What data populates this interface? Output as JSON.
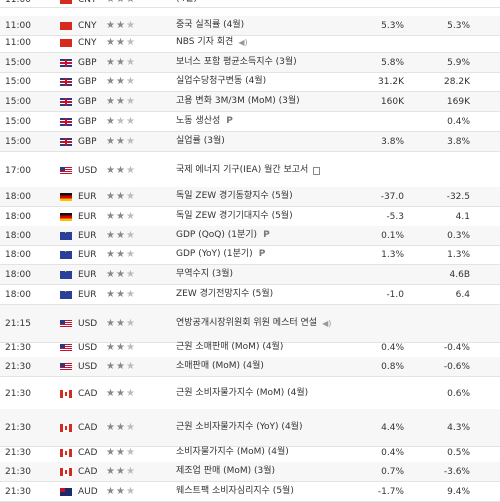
{
  "rows": [
    {
      "time": "11:00",
      "flag": "cn",
      "currency": "CNY",
      "importance": 3,
      "event": "(4월)",
      "actual": "",
      "forecast": "",
      "icon": ""
    },
    {
      "time": "11:00",
      "flag": "cn",
      "currency": "CNY",
      "importance": 2,
      "event": "중국 실직률 (4월)",
      "actual": "5.3%",
      "forecast": "5.3%",
      "icon": ""
    },
    {
      "time": "11:00",
      "flag": "cn",
      "currency": "CNY",
      "importance": 2,
      "event": "NBS 기자 회견",
      "actual": "",
      "forecast": "",
      "icon": "speaker-icon"
    },
    {
      "time": "15:00",
      "flag": "gb",
      "currency": "GBP",
      "importance": 2,
      "event": "보너스 포함 평균소득지수 (3월)",
      "actual": "5.8%",
      "forecast": "5.9%",
      "icon": ""
    },
    {
      "time": "15:00",
      "flag": "gb",
      "currency": "GBP",
      "importance": 2,
      "event": "실업수당청구변동 (4월)",
      "actual": "31.2K",
      "forecast": "28.2K",
      "icon": ""
    },
    {
      "time": "15:00",
      "flag": "gb",
      "currency": "GBP",
      "importance": 2,
      "event": "고용 변화 3M/3M (MoM) (3월)",
      "actual": "160K",
      "forecast": "169K",
      "icon": ""
    },
    {
      "time": "15:00",
      "flag": "gb",
      "currency": "GBP",
      "importance": 1,
      "event": "노동 생산성",
      "actual": "",
      "forecast": "0.4%",
      "icon": "P"
    },
    {
      "time": "15:00",
      "flag": "gb",
      "currency": "GBP",
      "importance": 2,
      "event": "실업률 (3월)",
      "actual": "3.8%",
      "forecast": "3.8%",
      "icon": ""
    },
    {
      "time": "17:00",
      "flag": "us",
      "currency": "USD",
      "importance": 2,
      "event": "국제 에너지 기구(IEA) 월간 보고서",
      "actual": "",
      "forecast": "",
      "icon": "document-icon"
    },
    {
      "time": "18:00",
      "flag": "de",
      "currency": "EUR",
      "importance": 2,
      "event": "독일 ZEW 경기동향지수 (5월)",
      "actual": "-37.0",
      "forecast": "-32.5",
      "icon": ""
    },
    {
      "time": "18:00",
      "flag": "de",
      "currency": "EUR",
      "importance": 2,
      "event": "독일 ZEW 경기기대지수 (5월)",
      "actual": "-5.3",
      "forecast": "4.1",
      "icon": ""
    },
    {
      "time": "18:00",
      "flag": "eu",
      "currency": "EUR",
      "importance": 2,
      "event": "GDP (QoQ) (1분기)",
      "actual": "0.1%",
      "forecast": "0.3%",
      "icon": "P"
    },
    {
      "time": "18:00",
      "flag": "eu",
      "currency": "EUR",
      "importance": 2,
      "event": "GDP (YoY) (1분기)",
      "actual": "1.3%",
      "forecast": "1.3%",
      "icon": "P"
    },
    {
      "time": "18:00",
      "flag": "eu",
      "currency": "EUR",
      "importance": 2,
      "event": "무역수지 (3월)",
      "actual": "",
      "forecast": "4.6B",
      "icon": ""
    },
    {
      "time": "18:00",
      "flag": "eu",
      "currency": "EUR",
      "importance": 2,
      "event": "ZEW 경기전망지수 (5월)",
      "actual": "-1.0",
      "forecast": "6.4",
      "icon": ""
    },
    {
      "time": "21:15",
      "flag": "us",
      "currency": "USD",
      "importance": 2,
      "event": "연방공개시장위원회 위원 메스터 연설",
      "actual": "",
      "forecast": "",
      "icon": "speaker-icon"
    },
    {
      "time": "21:30",
      "flag": "us",
      "currency": "USD",
      "importance": 2,
      "event": "근원 소매판매 (MoM) (4월)",
      "actual": "0.4%",
      "forecast": "-0.4%",
      "icon": ""
    },
    {
      "time": "21:30",
      "flag": "us",
      "currency": "USD",
      "importance": 2,
      "event": "소매판매 (MoM) (4월)",
      "actual": "0.8%",
      "forecast": "-0.6%",
      "icon": ""
    },
    {
      "time": "21:30",
      "flag": "ca",
      "currency": "CAD",
      "importance": 2,
      "event": "근원 소비자물가지수 (MoM) (4월)",
      "actual": "",
      "forecast": "0.6%",
      "icon": ""
    },
    {
      "time": "21:30",
      "flag": "ca",
      "currency": "CAD",
      "importance": 2,
      "event": "근원 소비자물가지수 (YoY) (4월)",
      "actual": "4.4%",
      "forecast": "4.3%",
      "icon": ""
    },
    {
      "time": "21:30",
      "flag": "ca",
      "currency": "CAD",
      "importance": 2,
      "event": "소비자물가지수 (MoM) (4월)",
      "actual": "0.4%",
      "forecast": "0.5%",
      "icon": ""
    },
    {
      "time": "21:30",
      "flag": "ca",
      "currency": "CAD",
      "importance": 2,
      "event": "제조업 판매 (MoM) (3월)",
      "actual": "0.7%",
      "forecast": "-3.6%",
      "icon": ""
    },
    {
      "time": "21:30",
      "flag": "au",
      "currency": "AUD",
      "importance": 2,
      "event": "웨스트팩 소비자심리지수 (5월)",
      "actual": "-1.7%",
      "forecast": "9.4%",
      "icon": ""
    }
  ]
}
